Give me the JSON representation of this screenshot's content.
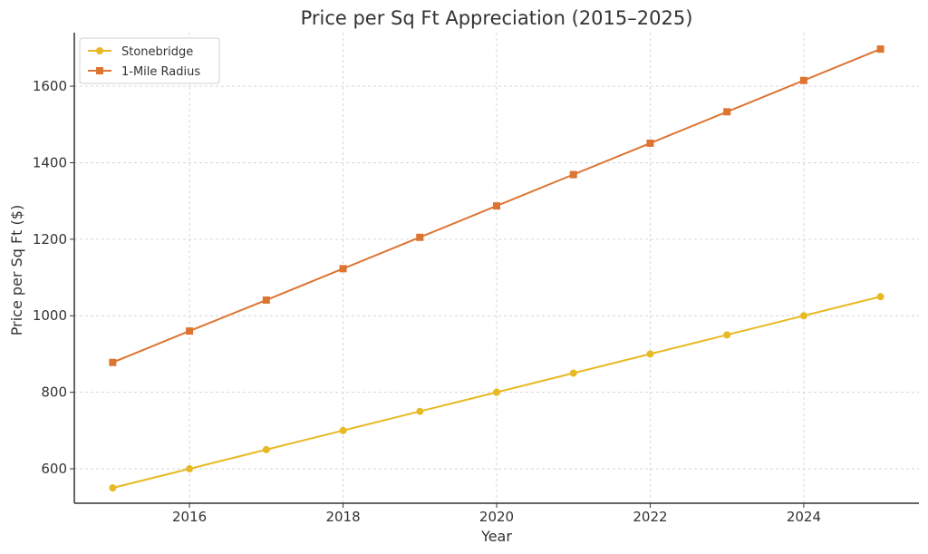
{
  "chart_data": {
    "type": "line",
    "title": "Price per Sq Ft Appreciation (2015–2025)",
    "xlabel": "Year",
    "ylabel": "Price per Sq Ft ($)",
    "x": [
      2015,
      2016,
      2017,
      2018,
      2019,
      2020,
      2021,
      2022,
      2023,
      2024,
      2025
    ],
    "xlim": [
      2014.5,
      2025.5
    ],
    "ylim": [
      510,
      1740
    ],
    "x_ticks": [
      2016,
      2018,
      2020,
      2022,
      2024
    ],
    "y_ticks": [
      600,
      800,
      1000,
      1200,
      1400,
      1600
    ],
    "x_tick_labels": [
      "2016",
      "2018",
      "2020",
      "2022",
      "2024"
    ],
    "y_tick_labels": [
      "600",
      "800",
      "1000",
      "1200",
      "1400",
      "1600"
    ],
    "grid": true,
    "legend_position": "top-left",
    "series": [
      {
        "name": "Stonebridge",
        "color": "#E8B923",
        "marker": "circle",
        "values": [
          550,
          600,
          650,
          700,
          750,
          800,
          850,
          900,
          950,
          1000,
          1050
        ]
      },
      {
        "name": "1-Mile Radius",
        "color": "#DD7432",
        "marker": "square",
        "values": [
          878,
          960,
          1041,
          1123,
          1205,
          1287,
          1369,
          1451,
          1533,
          1615,
          1697
        ]
      }
    ]
  }
}
